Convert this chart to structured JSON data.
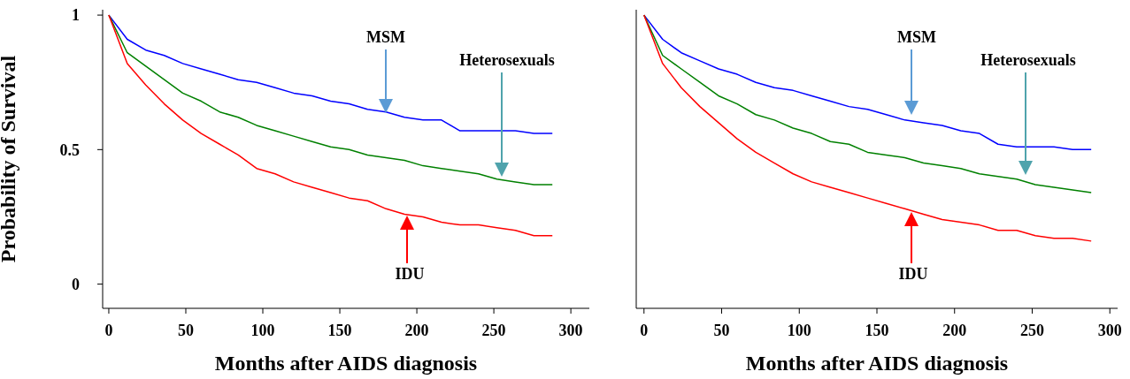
{
  "chart_data": [
    {
      "type": "line",
      "xlabel": "Months after AIDS diagnosis",
      "ylabel": "Probability of Survival",
      "marker": "none",
      "xlim": [
        -4,
        312
      ],
      "xticks": [
        0,
        50,
        100,
        150,
        200,
        250,
        300
      ],
      "ylim": [
        -0.09,
        1.02
      ],
      "yticks": [
        0,
        0.5,
        1
      ],
      "x": [
        0,
        12,
        24,
        36,
        48,
        60,
        72,
        84,
        96,
        108,
        120,
        132,
        144,
        156,
        168,
        180,
        192,
        204,
        216,
        228,
        240,
        252,
        264,
        276,
        288
      ],
      "series": [
        {
          "color": "#0000ff",
          "values": [
            1.0,
            0.91,
            0.87,
            0.85,
            0.82,
            0.8,
            0.78,
            0.76,
            0.75,
            0.73,
            0.71,
            0.7,
            0.68,
            0.67,
            0.65,
            0.64,
            0.62,
            0.61,
            0.61,
            0.57,
            0.57,
            0.57,
            0.57,
            0.56,
            0.56
          ]
        },
        {
          "color": "#008000",
          "values": [
            1.0,
            0.86,
            0.81,
            0.76,
            0.71,
            0.68,
            0.64,
            0.62,
            0.59,
            0.57,
            0.55,
            0.53,
            0.51,
            0.5,
            0.48,
            0.47,
            0.46,
            0.44,
            0.43,
            0.42,
            0.41,
            0.39,
            0.38,
            0.37,
            0.37
          ]
        },
        {
          "color": "#ff0000",
          "values": [
            1.0,
            0.82,
            0.74,
            0.67,
            0.61,
            0.56,
            0.52,
            0.48,
            0.43,
            0.41,
            0.38,
            0.36,
            0.34,
            0.32,
            0.31,
            0.28,
            0.26,
            0.25,
            0.23,
            0.22,
            0.22,
            0.21,
            0.2,
            0.18,
            0.18
          ]
        }
      ],
      "annotations": [
        "MSM",
        "Heterosexuals",
        "IDU"
      ]
    },
    {
      "type": "line",
      "xlabel": "Months after AIDS diagnosis",
      "marker": "none",
      "tick_labels": "x",
      "xlim": [
        -5,
        305
      ],
      "xticks": [
        0,
        50,
        100,
        150,
        200,
        250,
        300
      ],
      "ylim": [
        -0.09,
        1.02
      ],
      "yticks": [
        0,
        0.5,
        1
      ],
      "x": [
        0,
        12,
        24,
        36,
        48,
        60,
        72,
        84,
        96,
        108,
        120,
        132,
        144,
        156,
        168,
        180,
        192,
        204,
        216,
        228,
        240,
        252,
        264,
        276,
        288
      ],
      "series": [
        {
          "color": "#0000ff",
          "values": [
            1.0,
            0.91,
            0.86,
            0.83,
            0.8,
            0.78,
            0.75,
            0.73,
            0.72,
            0.7,
            0.68,
            0.66,
            0.65,
            0.63,
            0.61,
            0.6,
            0.59,
            0.57,
            0.56,
            0.52,
            0.51,
            0.51,
            0.51,
            0.5,
            0.5
          ]
        },
        {
          "color": "#008000",
          "values": [
            1.0,
            0.85,
            0.8,
            0.75,
            0.7,
            0.67,
            0.63,
            0.61,
            0.58,
            0.56,
            0.53,
            0.52,
            0.49,
            0.48,
            0.47,
            0.45,
            0.44,
            0.43,
            0.41,
            0.4,
            0.39,
            0.37,
            0.36,
            0.35,
            0.34
          ]
        },
        {
          "color": "#ff0000",
          "values": [
            1.0,
            0.82,
            0.73,
            0.66,
            0.6,
            0.54,
            0.49,
            0.45,
            0.41,
            0.38,
            0.36,
            0.34,
            0.32,
            0.3,
            0.28,
            0.26,
            0.24,
            0.23,
            0.22,
            0.2,
            0.2,
            0.18,
            0.17,
            0.17,
            0.16
          ]
        }
      ],
      "annotations": [
        "MSM",
        "Heterosexuals",
        "IDU"
      ]
    }
  ]
}
